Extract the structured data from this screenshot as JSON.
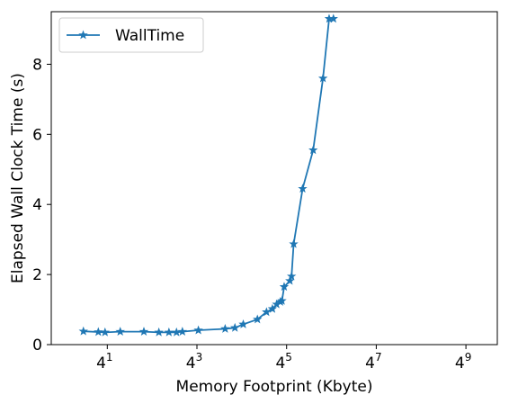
{
  "chart_data": {
    "type": "line",
    "title": "",
    "xlabel": "Memory Footprint (Kbyte)",
    "ylabel": "Elapsed Wall Clock Time (s)",
    "xscale": "log4",
    "xlim_exponent": [
      -0.25,
      9.7
    ],
    "ylim": [
      0,
      9.5
    ],
    "xticks": [
      {
        "base": "4",
        "exp": "1",
        "power": 1
      },
      {
        "base": "4",
        "exp": "3",
        "power": 3
      },
      {
        "base": "4",
        "exp": "5",
        "power": 5
      },
      {
        "base": "4",
        "exp": "7",
        "power": 7
      },
      {
        "base": "4",
        "exp": "9",
        "power": 9
      }
    ],
    "yticks": [
      "0",
      "2",
      "4",
      "6",
      "8"
    ],
    "ytick_values": [
      0,
      2,
      4,
      6,
      8
    ],
    "grid": false,
    "legend": {
      "position": "top-left",
      "entries": [
        "WallTime"
      ]
    },
    "color": "#1f77b4",
    "marker": "star",
    "series": [
      {
        "name": "WallTime",
        "x": [
          1.91,
          3.03,
          3.73,
          5.97,
          12.4,
          19.7,
          26.9,
          34.0,
          40.8,
          66.9,
          153,
          207,
          268,
          415,
          550,
          660,
          752,
          844,
          887,
          949,
          1132,
          1193,
          1273,
          1680,
          2328,
          3154,
          3813,
          4356
        ],
        "y": [
          0.38,
          0.36,
          0.35,
          0.37,
          0.37,
          0.35,
          0.35,
          0.35,
          0.37,
          0.41,
          0.45,
          0.48,
          0.58,
          0.72,
          0.93,
          1.02,
          1.15,
          1.22,
          1.25,
          1.65,
          1.82,
          1.95,
          2.87,
          4.45,
          5.55,
          7.6,
          9.3,
          9.3
        ]
      }
    ]
  }
}
